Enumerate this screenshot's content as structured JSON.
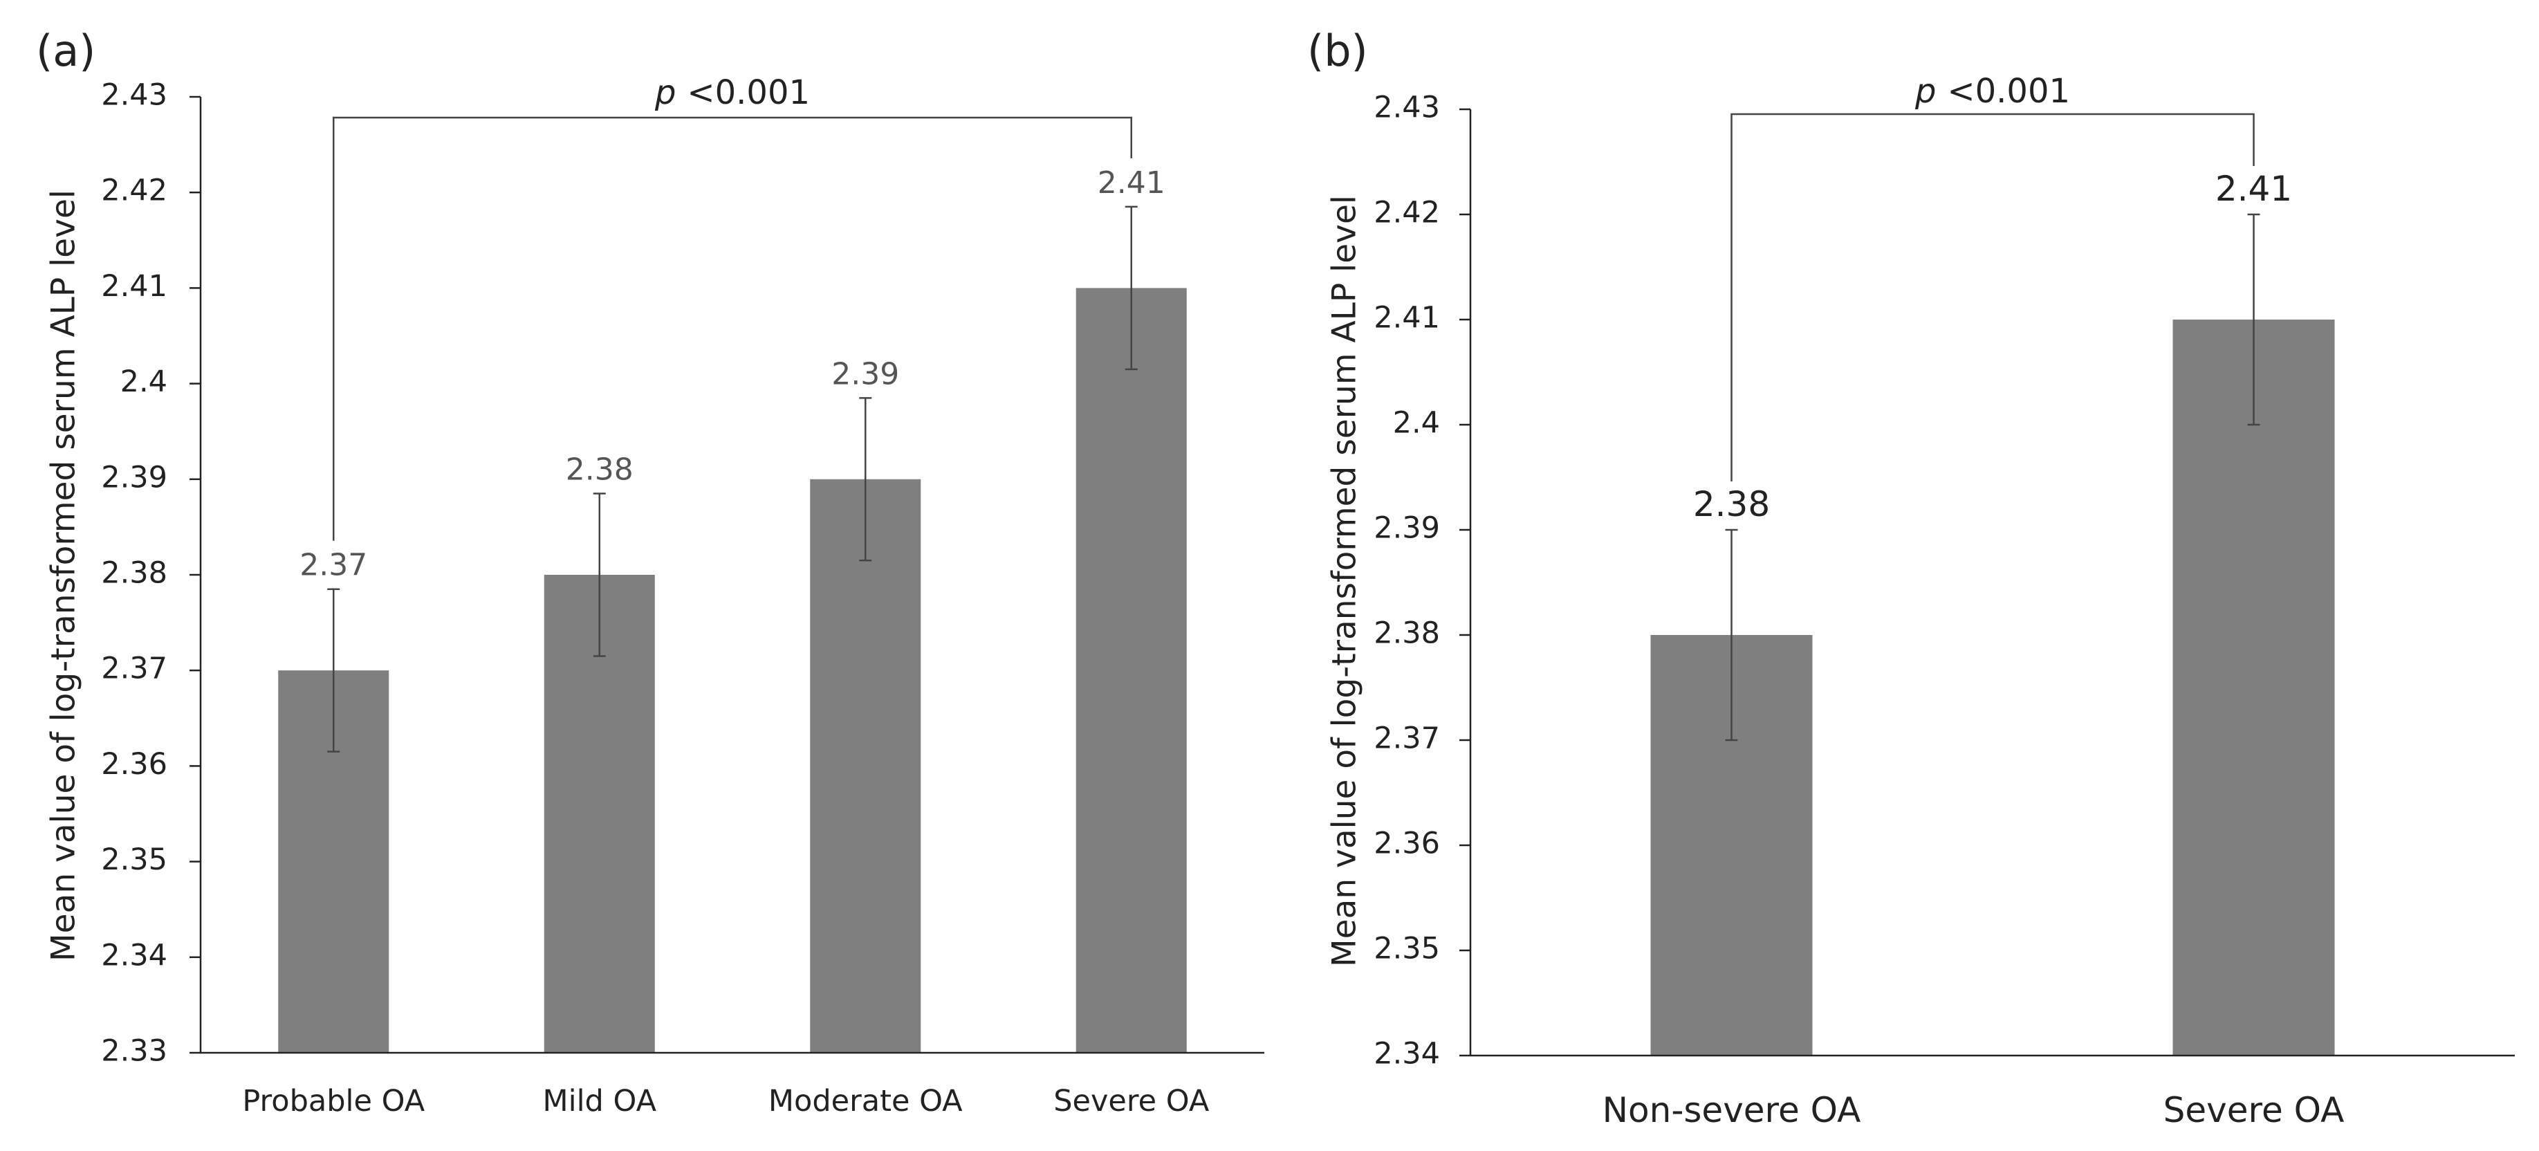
{
  "colors": {
    "bar": "#7f7f7f",
    "axis": "#222222",
    "error": "#444444",
    "bracket": "#444444"
  },
  "chart_data": [
    {
      "panel": "(a)",
      "type": "bar",
      "ylabel": "Mean value of log-transformed serum ALP level",
      "ylim": [
        2.33,
        2.43
      ],
      "yticks": [
        "2.33",
        "2.34",
        "2.35",
        "2.36",
        "2.37",
        "2.38",
        "2.39",
        "2.4",
        "2.41",
        "2.42",
        "2.43"
      ],
      "categories": [
        "Probable OA",
        "Mild OA",
        "Moderate OA",
        "Severe OA"
      ],
      "values": [
        2.37,
        2.38,
        2.39,
        2.41
      ],
      "value_labels": [
        "2.37",
        "2.38",
        "2.39",
        "2.41"
      ],
      "errors": [
        0.0085,
        0.0085,
        0.0085,
        0.0085
      ],
      "significance": {
        "p_symbol": "p",
        "text": "<0.001",
        "from": "Probable OA",
        "to": "Severe OA"
      }
    },
    {
      "panel": "(b)",
      "type": "bar",
      "ylabel": "Mean value of log-transformed serum ALP level",
      "ylim": [
        2.34,
        2.43
      ],
      "yticks": [
        "2.34",
        "2.35",
        "2.36",
        "2.37",
        "2.38",
        "2.39",
        "2.4",
        "2.41",
        "2.42",
        "2.43"
      ],
      "categories": [
        "Non-severe OA",
        "Severe OA"
      ],
      "values": [
        2.38,
        2.41
      ],
      "value_labels": [
        "2.38",
        "2.41"
      ],
      "errors": [
        0.01,
        0.01
      ],
      "significance": {
        "p_symbol": "p",
        "text": "<0.001",
        "from": "Non-severe OA",
        "to": "Severe OA"
      }
    }
  ]
}
